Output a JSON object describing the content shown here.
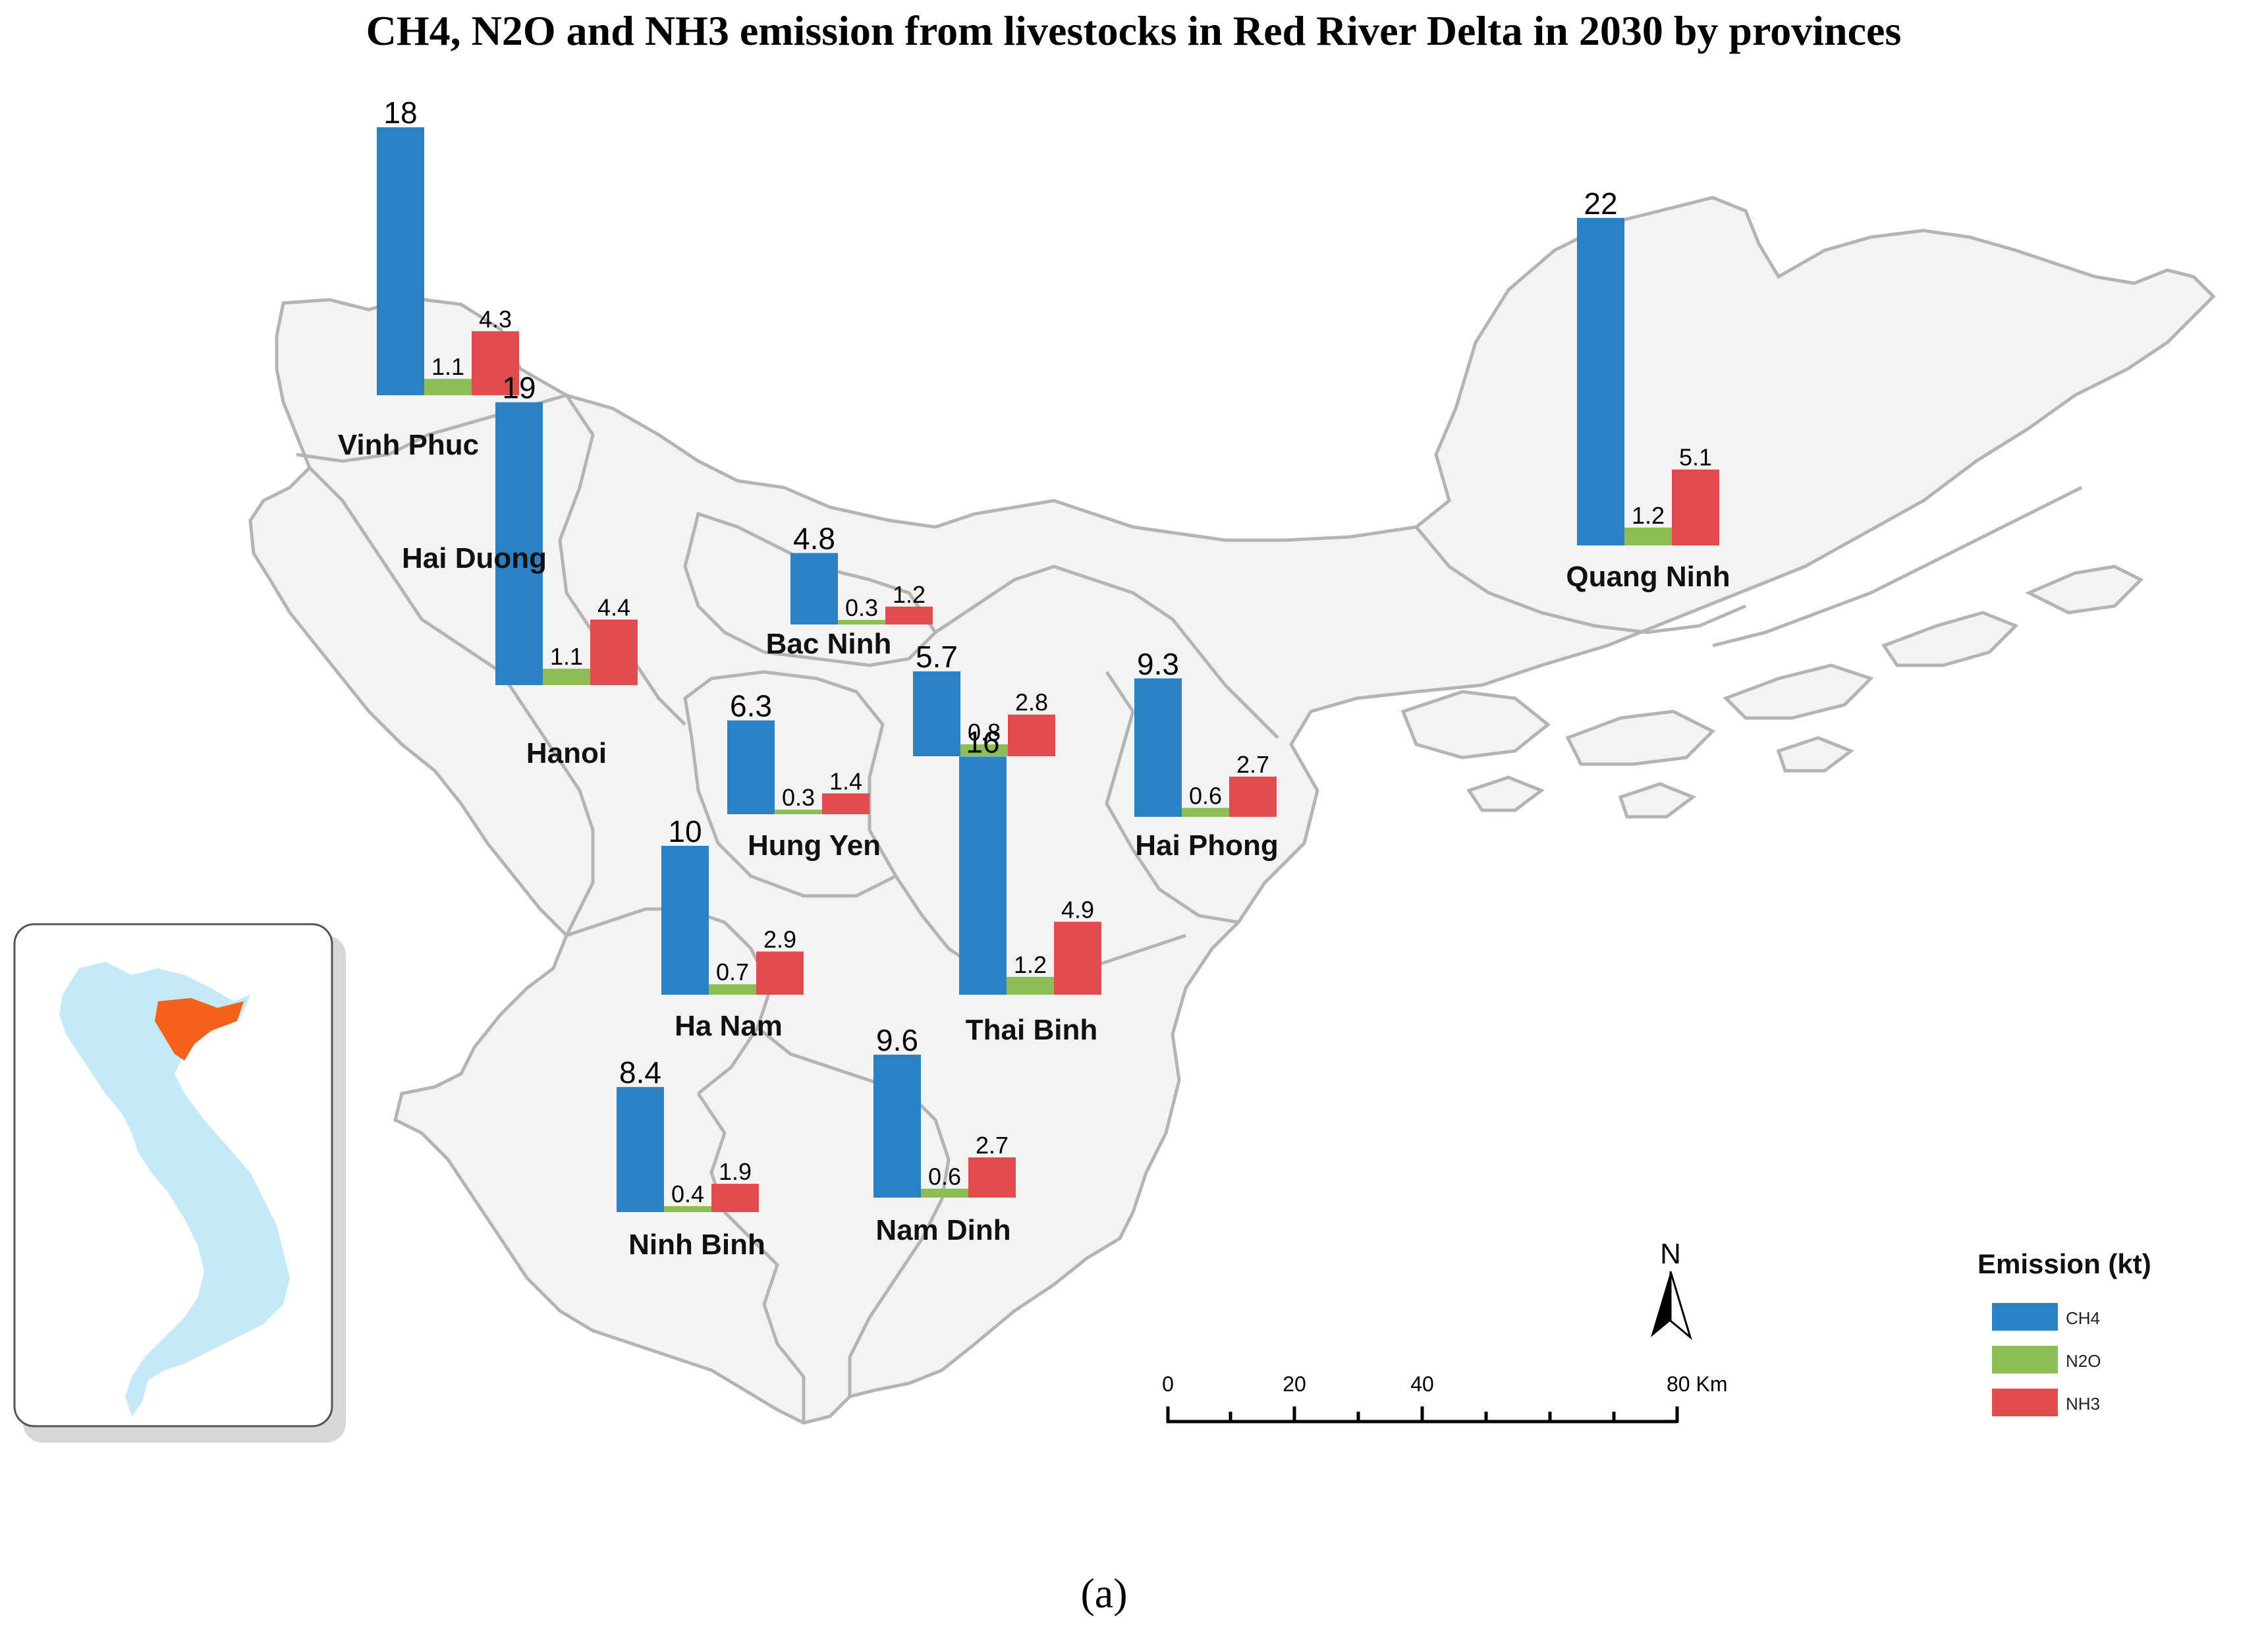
{
  "title": "CH4, N2O and NH3 emission from livestocks in Red River Delta in 2030 by provinces",
  "caption": "(a)",
  "legend": {
    "title": "Emission (kt)",
    "items": [
      {
        "label": "CH4",
        "color": "#2a82c4"
      },
      {
        "label": "N2O",
        "color": "#8bbf55"
      },
      {
        "label": "NH3",
        "color": "#e04b4e"
      }
    ]
  },
  "scale_bar": {
    "ticks": [
      "0",
      "20",
      "40",
      "80 Km"
    ]
  },
  "north_arrow": {
    "label": "N"
  },
  "region_labels": {
    "hai_duong": "Hai Duong"
  },
  "chart_data": {
    "type": "bar",
    "title": "CH4, N2O and NH3 emission from livestocks in Red River Delta in 2030 by provinces",
    "unit": "kt",
    "series_names": [
      "CH4",
      "N2O",
      "NH3"
    ],
    "provinces": [
      {
        "name": "Vinh Phuc",
        "CH4": 18,
        "N2O": 1.1,
        "NH3": 4.3
      },
      {
        "name": "Hanoi",
        "CH4": 19,
        "N2O": 1.1,
        "NH3": 4.4
      },
      {
        "name": "Bac Ninh",
        "CH4": 4.8,
        "N2O": 0.3,
        "NH3": 1.2
      },
      {
        "name": "Hung Yen",
        "CH4": 6.3,
        "N2O": 0.3,
        "NH3": 1.4
      },
      {
        "name": "Hai Duong",
        "CH4": 5.7,
        "N2O": 0.8,
        "NH3": 2.8
      },
      {
        "name": "Hai Phong",
        "CH4": 9.3,
        "N2O": 0.6,
        "NH3": 2.7
      },
      {
        "name": "Quang Ninh",
        "CH4": 22,
        "N2O": 1.2,
        "NH3": 5.1
      },
      {
        "name": "Thai Binh",
        "CH4": 16,
        "N2O": 1.2,
        "NH3": 4.9
      },
      {
        "name": "Ha Nam",
        "CH4": 10,
        "N2O": 0.7,
        "NH3": 2.9
      },
      {
        "name": "Nam Dinh",
        "CH4": 9.6,
        "N2O": 0.6,
        "NH3": 2.7
      },
      {
        "name": "Ninh Binh",
        "CH4": 8.4,
        "N2O": 0.4,
        "NH3": 1.9
      }
    ]
  }
}
